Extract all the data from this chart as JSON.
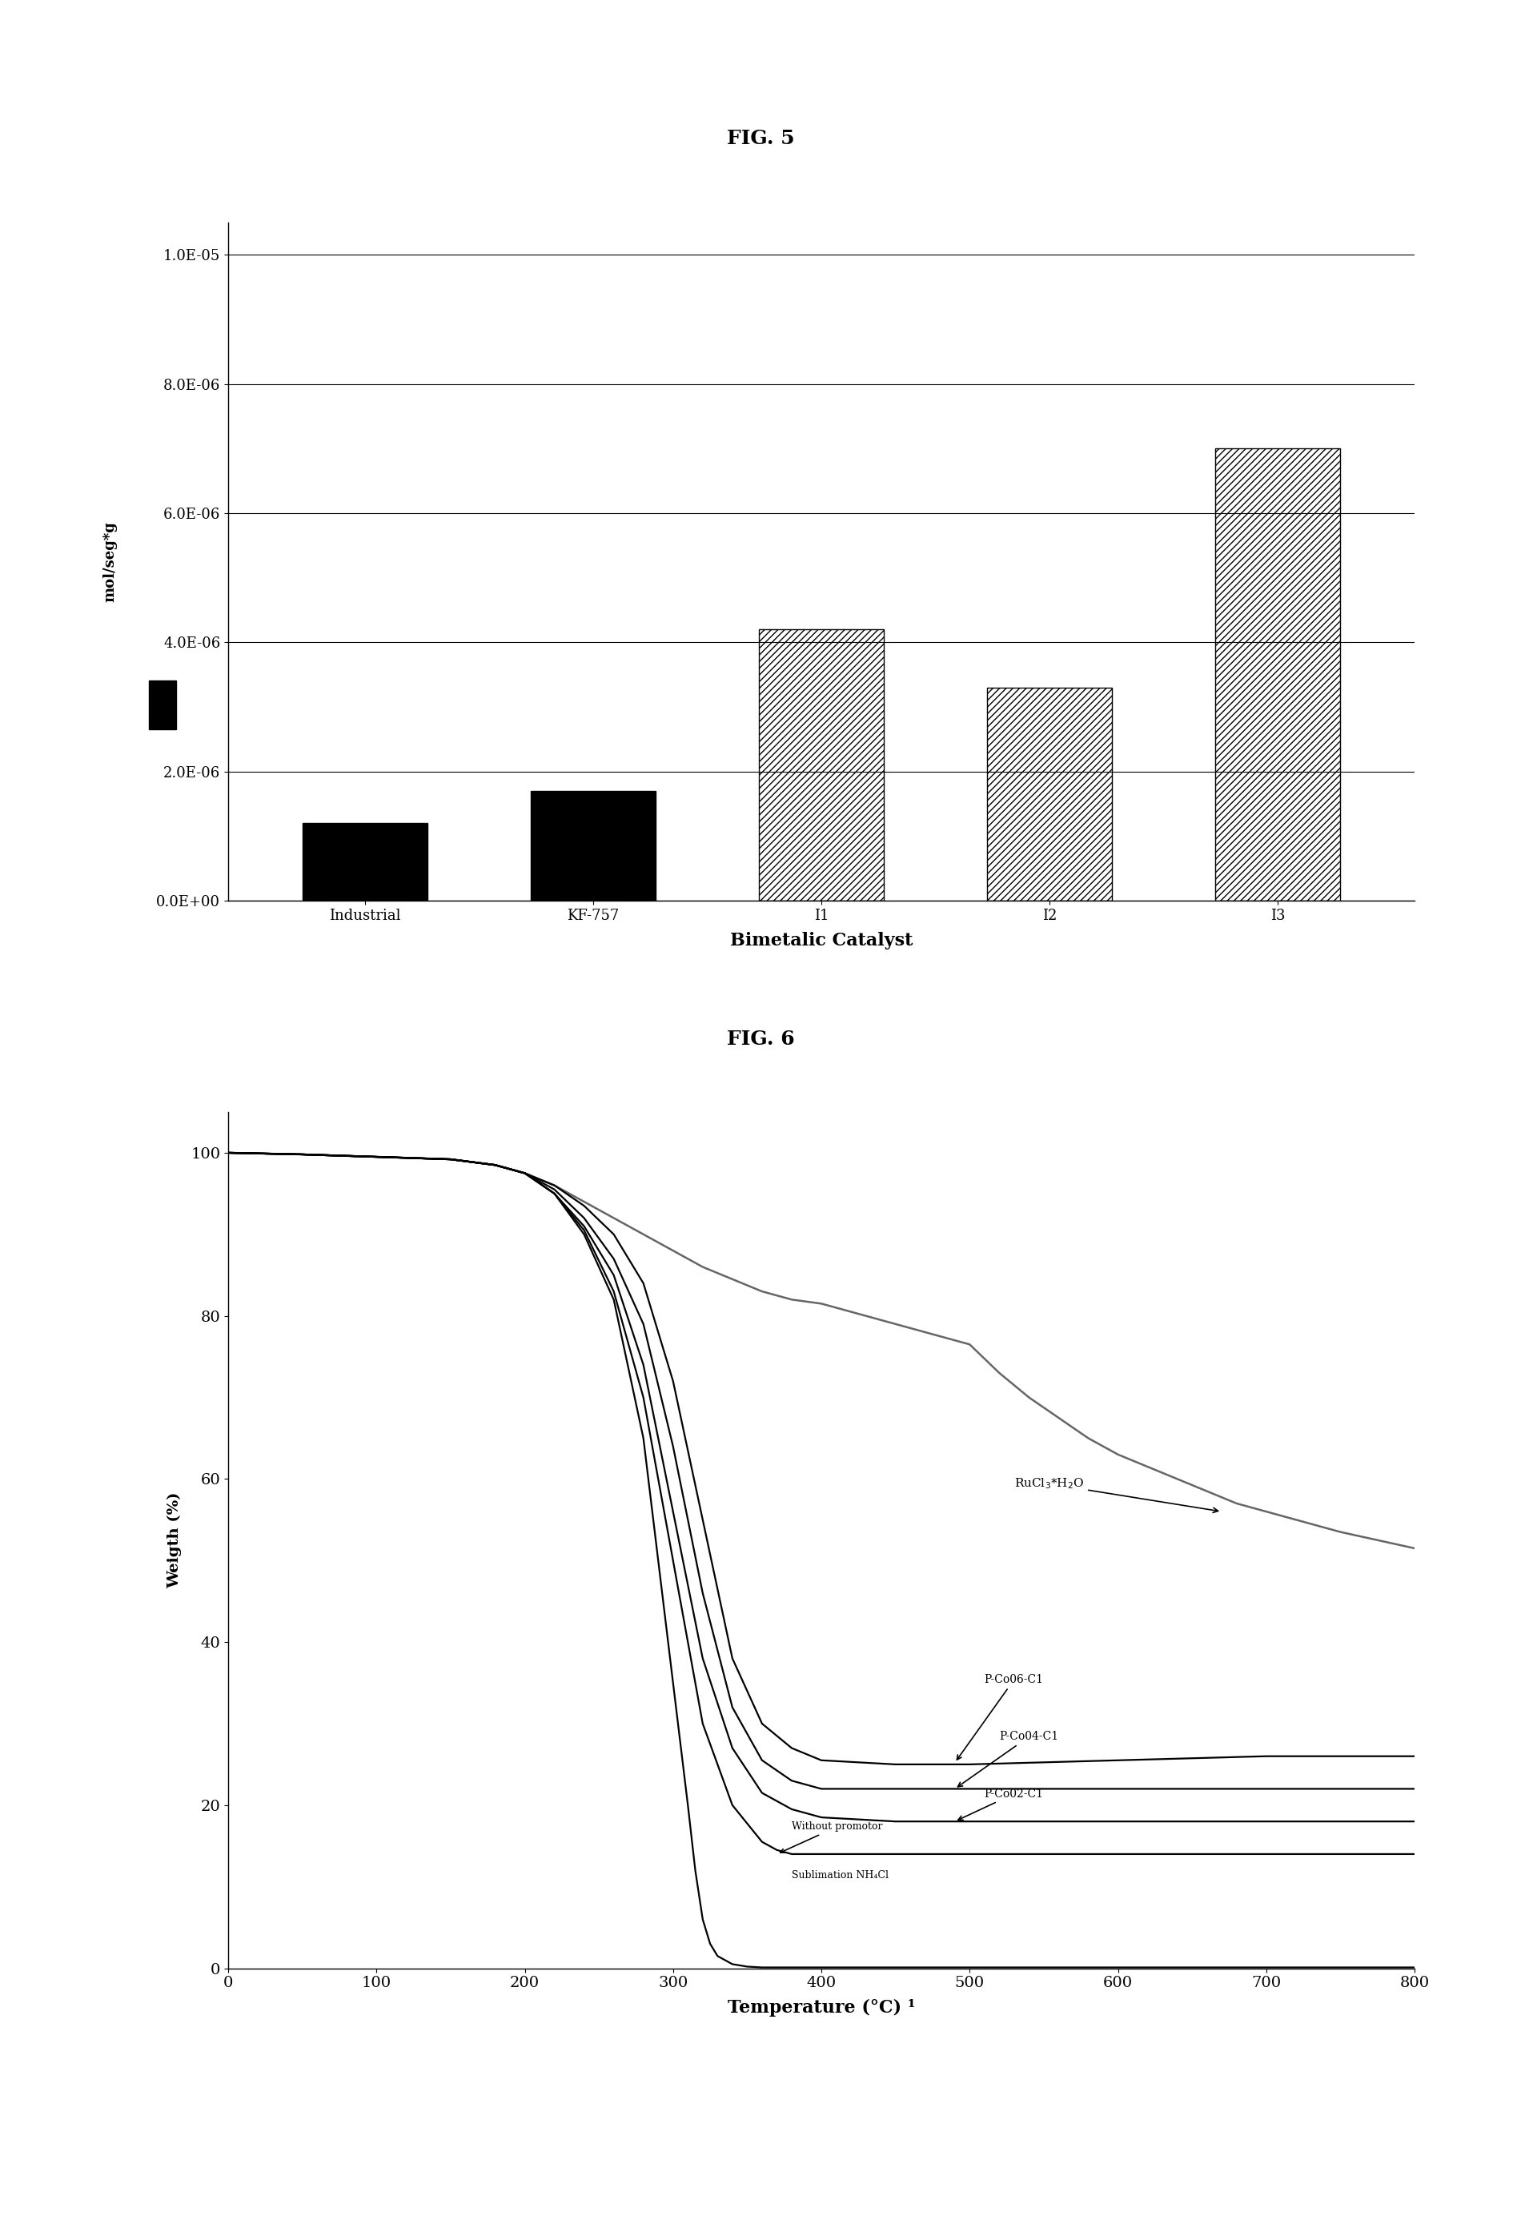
{
  "fig5": {
    "title": "FIG. 5",
    "categories": [
      "Industrial",
      "KF-757",
      "I1",
      "I2",
      "I3"
    ],
    "values": [
      1.2e-06,
      1.7e-06,
      4.2e-06,
      3.3e-06,
      7e-06
    ],
    "bar_colors": [
      "#000000",
      "#000000",
      "#ffffff",
      "#ffffff",
      "#ffffff"
    ],
    "hatch_patterns": [
      "",
      "",
      "////",
      "////",
      "////"
    ],
    "ylabel": "mol/seg*g",
    "xlabel": "Bimetalic Catalyst",
    "ylim": [
      0,
      1.05e-05
    ],
    "yticks": [
      0.0,
      2e-06,
      4e-06,
      6e-06,
      8e-06,
      1e-05
    ],
    "ytick_labels": [
      "0.0E+00",
      "2.0E-06",
      "4.0E-06",
      "6.0E-06",
      "8.0E-06",
      "1.0E-05"
    ]
  },
  "fig6": {
    "title": "FIG. 6",
    "xlabel": "Temperature (°C) ¹",
    "ylabel": "Weigth (%)",
    "xlim": [
      0,
      800
    ],
    "ylim": [
      0,
      105
    ],
    "yticks": [
      0,
      20,
      40,
      60,
      80,
      100
    ],
    "xticks": [
      0,
      100,
      200,
      300,
      400,
      500,
      600,
      700,
      800
    ],
    "RuCl3_x": [
      0,
      50,
      100,
      150,
      180,
      200,
      220,
      240,
      260,
      280,
      300,
      320,
      340,
      360,
      380,
      400,
      420,
      440,
      460,
      480,
      500,
      520,
      540,
      560,
      580,
      600,
      620,
      640,
      660,
      680,
      700,
      750,
      800
    ],
    "RuCl3_y": [
      100,
      99.8,
      99.5,
      99.2,
      98.5,
      97.5,
      96.0,
      94.0,
      92.0,
      90.0,
      88.0,
      86.0,
      84.5,
      83.0,
      82.0,
      81.5,
      80.5,
      79.5,
      78.5,
      77.5,
      76.5,
      73.0,
      70.0,
      67.5,
      65.0,
      63.0,
      61.5,
      60.0,
      58.5,
      57.0,
      56.0,
      53.5,
      51.5
    ],
    "PCo06_x": [
      0,
      50,
      100,
      150,
      180,
      200,
      220,
      240,
      260,
      280,
      300,
      320,
      340,
      360,
      380,
      400,
      450,
      500,
      600,
      700,
      800
    ],
    "PCo06_y": [
      100,
      99.8,
      99.5,
      99.2,
      98.5,
      97.5,
      96.0,
      93.5,
      90.0,
      84.0,
      72.0,
      55.0,
      38.0,
      30.0,
      27.0,
      25.5,
      25.0,
      25.0,
      25.5,
      26.0,
      26.0
    ],
    "PCo04_x": [
      0,
      50,
      100,
      150,
      180,
      200,
      220,
      240,
      260,
      280,
      300,
      320,
      340,
      360,
      380,
      400,
      450,
      500,
      600,
      700,
      800
    ],
    "PCo04_y": [
      100,
      99.8,
      99.5,
      99.2,
      98.5,
      97.5,
      95.5,
      92.0,
      87.0,
      79.0,
      64.0,
      46.0,
      32.0,
      25.5,
      23.0,
      22.0,
      22.0,
      22.0,
      22.0,
      22.0,
      22.0
    ],
    "PCo02_x": [
      0,
      50,
      100,
      150,
      180,
      200,
      220,
      240,
      260,
      280,
      300,
      320,
      340,
      360,
      380,
      400,
      450,
      500,
      600,
      700,
      800
    ],
    "PCo02_y": [
      100,
      99.8,
      99.5,
      99.2,
      98.5,
      97.5,
      95.0,
      91.0,
      85.0,
      74.0,
      56.0,
      38.0,
      27.0,
      21.5,
      19.5,
      18.5,
      18.0,
      18.0,
      18.0,
      18.0,
      18.0
    ],
    "WoP_x": [
      0,
      50,
      100,
      150,
      180,
      200,
      220,
      240,
      260,
      280,
      300,
      320,
      340,
      360,
      370,
      380,
      400,
      450,
      500,
      600,
      700,
      800
    ],
    "WoP_y": [
      100,
      99.8,
      99.5,
      99.2,
      98.5,
      97.5,
      95.0,
      90.5,
      83.0,
      70.0,
      50.0,
      30.0,
      20.0,
      15.5,
      14.5,
      14.0,
      14.0,
      14.0,
      14.0,
      14.0,
      14.0,
      14.0
    ],
    "Sub_x": [
      0,
      50,
      100,
      150,
      180,
      200,
      220,
      240,
      260,
      280,
      300,
      310,
      315,
      320,
      325,
      330,
      340,
      350,
      360,
      380,
      400,
      450,
      500,
      600,
      700,
      800
    ],
    "Sub_y": [
      100,
      99.8,
      99.5,
      99.2,
      98.5,
      97.5,
      95.0,
      90.0,
      82.0,
      65.0,
      35.0,
      20.0,
      12.0,
      6.0,
      3.0,
      1.5,
      0.5,
      0.2,
      0.1,
      0.1,
      0.1,
      0.1,
      0.1,
      0.1,
      0.1,
      0.1
    ]
  }
}
